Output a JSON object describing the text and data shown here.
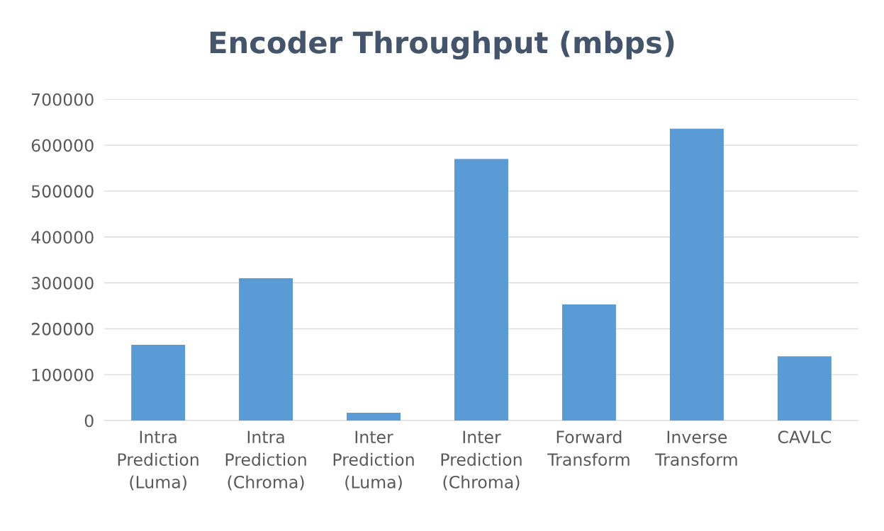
{
  "chart_data": {
    "type": "bar",
    "title": "Encoder Throughput (mbps)",
    "categories": [
      "Intra\nPrediction\n(Luma)",
      "Intra\nPrediction\n(Chroma)",
      "Inter\nPrediction\n(Luma)",
      "Inter\nPrediction\n(Chroma)",
      "Forward\nTransform",
      "Inverse\nTransform",
      "CAVLC"
    ],
    "values": [
      165000,
      310000,
      17000,
      570000,
      253000,
      636000,
      140000
    ],
    "color": "#5b9bd5",
    "ylim": [
      0,
      700000
    ],
    "yticks": [
      0,
      100000,
      200000,
      300000,
      400000,
      500000,
      600000,
      700000
    ],
    "grid": "y"
  }
}
